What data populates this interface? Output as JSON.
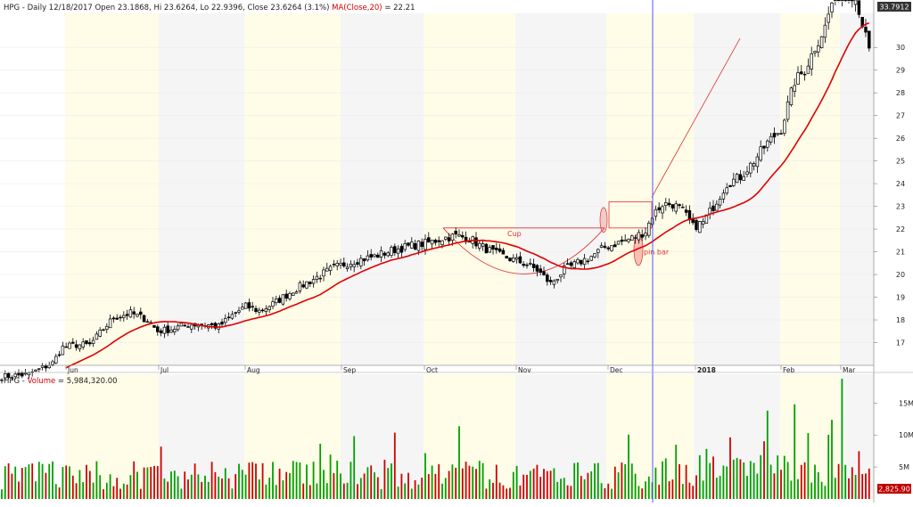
{
  "price_header": {
    "symbol": "HPG",
    "sep1": " - ",
    "info": "Daily 12/18/2017 Open 23.1868, Hi 23.6264, Lo 22.9396, Close 23.6264 (3.1%)",
    "sep2": " ",
    "ma_label": "MA(Close,20)",
    "ma_value": " = 22.21"
  },
  "volume_header": {
    "symbol": "HPG",
    "sep1": " - ",
    "label": "Volume",
    "value": " = 5,984,320.00"
  },
  "colors": {
    "up": "#00a000",
    "down": "#d00000",
    "ma": "#e00000",
    "annotation": "#e03030",
    "cursor": "#4444ff",
    "header_highlight": "#d00000"
  },
  "chart_data": [
    {
      "type": "candlestick",
      "x_tick_labels": [
        "Jun",
        "Jul",
        "Aug",
        "Sep",
        "Oct",
        "Nov",
        "Dec",
        "2018",
        "Feb",
        "Mar"
      ],
      "y_tick_labels": [
        "17",
        "18",
        "19",
        "20",
        "21",
        "22",
        "23",
        "24",
        "25",
        "26",
        "27",
        "28",
        "29",
        "30"
      ],
      "ylim": [
        16,
        31.5
      ],
      "last_price_label": "33.7912",
      "annotations": [
        "Cup",
        "pin bar"
      ],
      "ma_series": "MA(Close,20)",
      "ohlc_anchor_closes": [
        [
          0,
          15.5
        ],
        [
          8,
          15.6
        ],
        [
          15,
          16.1
        ],
        [
          18,
          16.8
        ],
        [
          22,
          16.9
        ],
        [
          26,
          16.9
        ],
        [
          30,
          17.6
        ],
        [
          33,
          18.1
        ],
        [
          38,
          18.3
        ],
        [
          43,
          18.0
        ],
        [
          46,
          17.5
        ],
        [
          50,
          17.6
        ],
        [
          55,
          17.8
        ],
        [
          60,
          17.8
        ],
        [
          64,
          17.7
        ],
        [
          68,
          18.2
        ],
        [
          72,
          18.6
        ],
        [
          76,
          18.4
        ],
        [
          80,
          18.7
        ],
        [
          86,
          19.3
        ],
        [
          92,
          19.8
        ],
        [
          98,
          20.3
        ],
        [
          104,
          20.6
        ],
        [
          110,
          20.8
        ],
        [
          116,
          21.1
        ],
        [
          122,
          21.3
        ],
        [
          126,
          21.4
        ],
        [
          130,
          21.6
        ],
        [
          134,
          21.7
        ],
        [
          138,
          21.6
        ],
        [
          142,
          21.2
        ],
        [
          146,
          20.9
        ],
        [
          150,
          20.7
        ],
        [
          154,
          20.5
        ],
        [
          158,
          20.2
        ],
        [
          162,
          19.6
        ],
        [
          166,
          20.2
        ],
        [
          170,
          20.5
        ],
        [
          174,
          20.8
        ],
        [
          178,
          21.2
        ],
        [
          182,
          21.4
        ],
        [
          186,
          21.6
        ],
        [
          190,
          21.9
        ],
        [
          192,
          22.6
        ],
        [
          195,
          23.1
        ],
        [
          198,
          23.1
        ],
        [
          201,
          22.8
        ],
        [
          204,
          22.1
        ],
        [
          207,
          22.3
        ],
        [
          210,
          23.0
        ],
        [
          214,
          24.0
        ],
        [
          218,
          24.3
        ],
        [
          222,
          25.0
        ],
        [
          226,
          25.8
        ],
        [
          230,
          26.4
        ],
        [
          234,
          28.5
        ],
        [
          237,
          29.0
        ],
        [
          240,
          30.0
        ],
        [
          243,
          30.9
        ],
        [
          246,
          32.5
        ],
        [
          252,
          32.3
        ],
        [
          257,
          29.2
        ]
      ],
      "volume_y_tick_labels": [
        "5M",
        "10M",
        "15M"
      ],
      "volume_ylim": [
        0,
        19500000
      ],
      "volume_last_label": "2,825.90"
    }
  ]
}
